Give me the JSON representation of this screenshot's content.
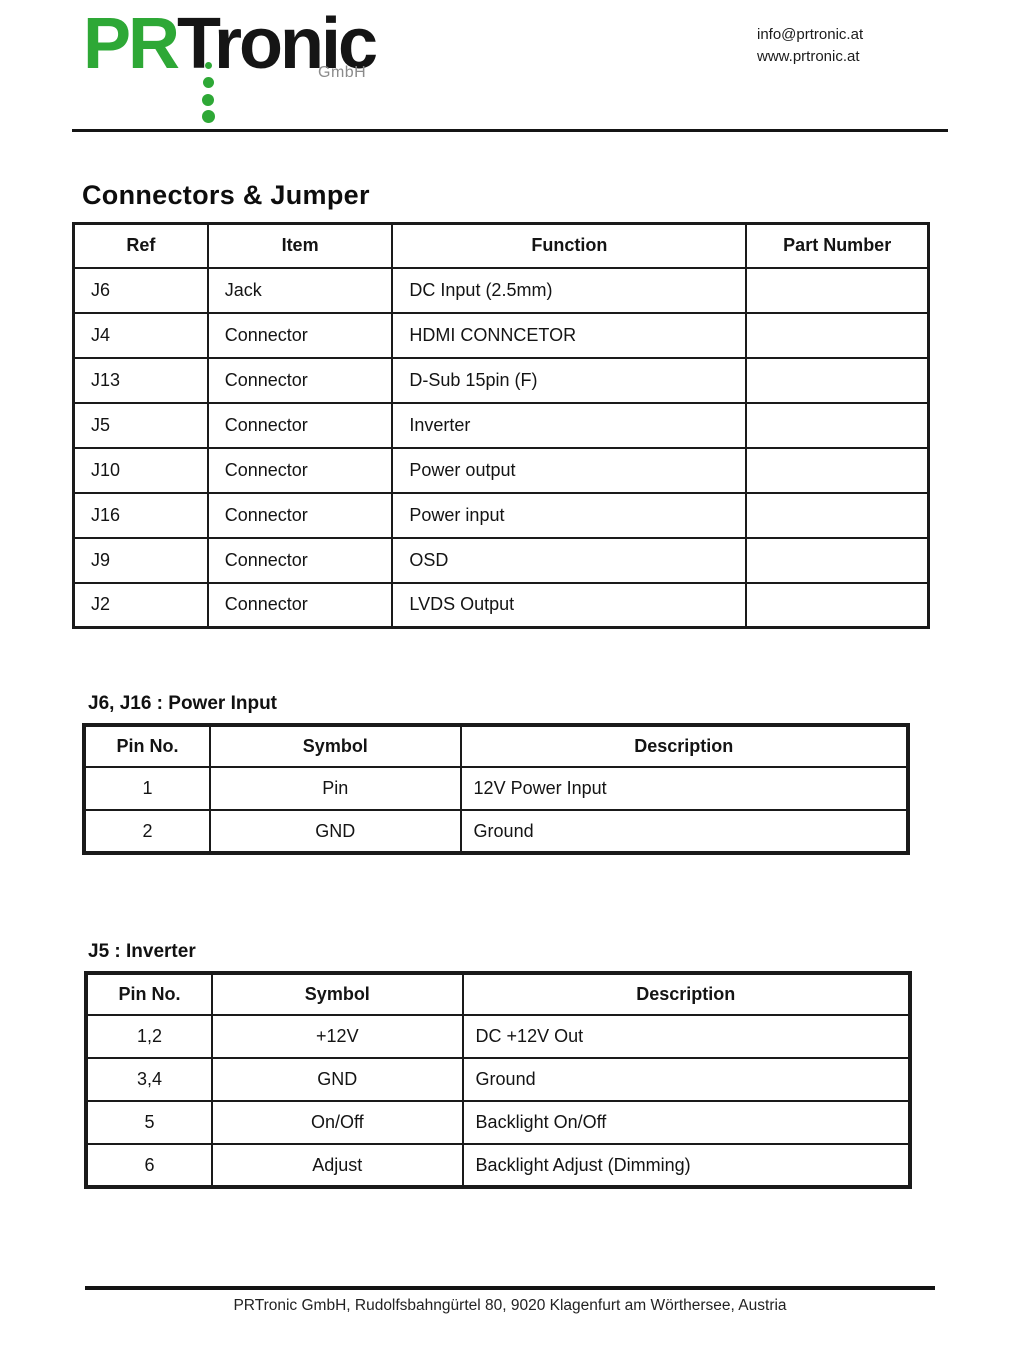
{
  "header": {
    "logo": {
      "part1": "PR",
      "part2": "Tronic",
      "suffix": "GmbH",
      "green": "#2ea836",
      "black": "#151515",
      "gray": "#8b8b8b"
    },
    "contact": {
      "email": "info@prtronic.at",
      "website": "www.prtronic.at"
    }
  },
  "title": "Connectors & Jumper",
  "tables": {
    "connectors": {
      "headers": [
        "Ref",
        "Item",
        "Function",
        "Part Number"
      ],
      "rows": [
        [
          "J6",
          "Jack",
          "DC Input (2.5mm)",
          ""
        ],
        [
          "J4",
          "Connector",
          "HDMI CONNCETOR",
          ""
        ],
        [
          "J13",
          "Connector",
          "D-Sub 15pin (F)",
          ""
        ],
        [
          "J5",
          "Connector",
          "Inverter",
          ""
        ],
        [
          "J10",
          "Connector",
          "Power output",
          ""
        ],
        [
          "J16",
          "Connector",
          "Power input",
          ""
        ],
        [
          "J9",
          "Connector",
          "OSD",
          ""
        ],
        [
          "J2",
          "Connector",
          "LVDS Output",
          ""
        ]
      ]
    },
    "power_input": {
      "title": "J6, J16 : Power Input",
      "headers": [
        "Pin No.",
        "Symbol",
        "Description"
      ],
      "rows": [
        [
          "1",
          "Pin",
          "12V Power Input"
        ],
        [
          "2",
          "GND",
          "Ground"
        ]
      ]
    },
    "inverter": {
      "title": "J5 : Inverter",
      "headers": [
        "Pin No.",
        "Symbol",
        "Description"
      ],
      "rows": [
        [
          "1,2",
          "+12V",
          "DC +12V Out"
        ],
        [
          "3,4",
          "GND",
          "Ground"
        ],
        [
          "5",
          "On/Off",
          "Backlight On/Off"
        ],
        [
          "6",
          "Adjust",
          "Backlight Adjust (Dimming)"
        ]
      ]
    }
  },
  "footer": {
    "text": "PRTronic GmbH, Rudolfsbahngürtel 80, 9020 Klagenfurt am Wörthersee, Austria"
  }
}
